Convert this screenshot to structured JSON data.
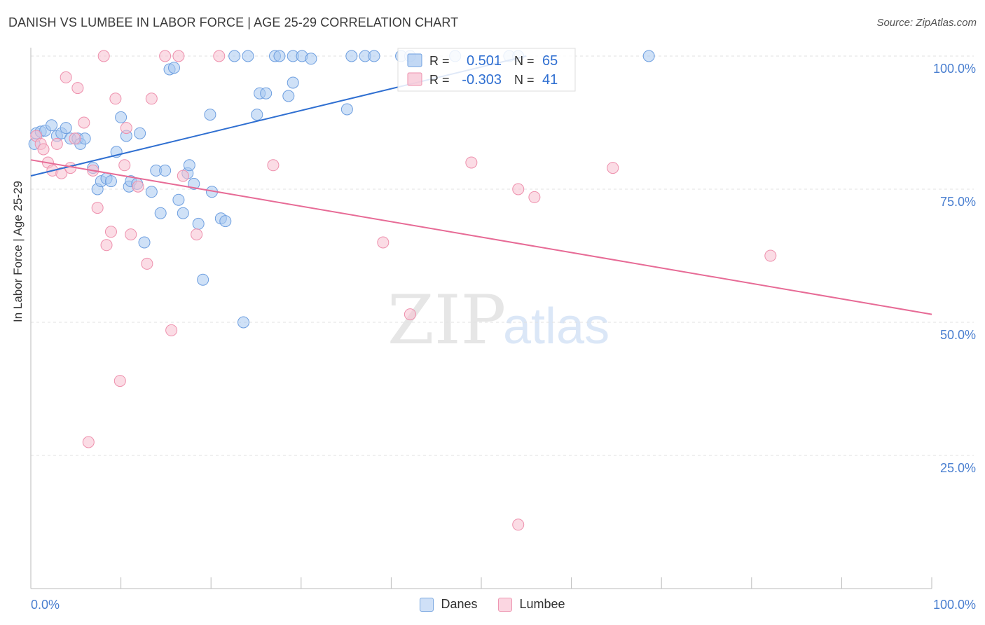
{
  "header": {
    "title": "DANISH VS LUMBEE IN LABOR FORCE | AGE 25-29 CORRELATION CHART",
    "source": "Source: ZipAtlas.com"
  },
  "watermark": {
    "zip": "ZIP",
    "atlas": "atlas"
  },
  "chart_data": {
    "type": "scatter",
    "ylabel": "In Labor Force | Age 25-29",
    "xlim": [
      0,
      100
    ],
    "ylim": [
      0,
      100
    ],
    "x_tick_labels": [
      "0.0%",
      "100.0%"
    ],
    "y_ticks": [
      25,
      50,
      75,
      100
    ],
    "y_tick_labels": [
      "25.0%",
      "50.0%",
      "75.0%",
      "100.0%"
    ],
    "grid": true,
    "legend_position": "top-center",
    "series": [
      {
        "name": "Danes",
        "color": "#a8c8f0",
        "edge": "#6e9fe0",
        "line_color": "#2f6fd1",
        "R": "0.501",
        "N": "65",
        "trend": [
          [
            0,
            77.5
          ],
          [
            55,
            100
          ]
        ],
        "points": [
          [
            0.4,
            83.5
          ],
          [
            0.6,
            85.5
          ],
          [
            1.1,
            85.8
          ],
          [
            1.6,
            86.0
          ],
          [
            2.3,
            87.0
          ],
          [
            2.9,
            85.0
          ],
          [
            3.4,
            85.5
          ],
          [
            3.9,
            86.5
          ],
          [
            4.4,
            84.5
          ],
          [
            5.2,
            84.5
          ],
          [
            5.5,
            83.5
          ],
          [
            6.0,
            84.5
          ],
          [
            6.9,
            79.0
          ],
          [
            7.4,
            75.0
          ],
          [
            7.8,
            76.5
          ],
          [
            8.4,
            77.0
          ],
          [
            8.9,
            76.5
          ],
          [
            9.5,
            82.0
          ],
          [
            10.0,
            88.5
          ],
          [
            10.6,
            85.0
          ],
          [
            10.9,
            75.5
          ],
          [
            11.1,
            76.5
          ],
          [
            11.8,
            76.0
          ],
          [
            12.1,
            85.5
          ],
          [
            12.6,
            65.0
          ],
          [
            13.4,
            74.5
          ],
          [
            13.9,
            78.5
          ],
          [
            14.4,
            70.5
          ],
          [
            14.9,
            78.5
          ],
          [
            15.4,
            97.5
          ],
          [
            15.9,
            97.8
          ],
          [
            16.4,
            73.0
          ],
          [
            16.9,
            70.5
          ],
          [
            17.4,
            78.0
          ],
          [
            17.6,
            79.5
          ],
          [
            18.1,
            76.0
          ],
          [
            18.6,
            68.5
          ],
          [
            19.1,
            58.0
          ],
          [
            19.9,
            89.0
          ],
          [
            20.1,
            74.5
          ],
          [
            21.1,
            69.5
          ],
          [
            21.6,
            69.0
          ],
          [
            22.6,
            100
          ],
          [
            23.6,
            50.0
          ],
          [
            24.1,
            100
          ],
          [
            25.1,
            89.0
          ],
          [
            25.4,
            93.0
          ],
          [
            26.1,
            93.0
          ],
          [
            27.1,
            100
          ],
          [
            27.6,
            100
          ],
          [
            28.6,
            92.5
          ],
          [
            29.1,
            95.0
          ],
          [
            29.1,
            100
          ],
          [
            30.1,
            100
          ],
          [
            31.1,
            99.5
          ],
          [
            35.1,
            90.0
          ],
          [
            35.6,
            100
          ],
          [
            37.1,
            100
          ],
          [
            38.1,
            100
          ],
          [
            41.1,
            100
          ],
          [
            42.1,
            100
          ],
          [
            47.1,
            100
          ],
          [
            53.1,
            100
          ],
          [
            54.1,
            100
          ],
          [
            68.6,
            100
          ]
        ]
      },
      {
        "name": "Lumbee",
        "color": "#f7bfd0",
        "edge": "#ee90ad",
        "line_color": "#e76b96",
        "R": "-0.303",
        "N": "41",
        "trend": [
          [
            0,
            80.5
          ],
          [
            100,
            51.5
          ]
        ],
        "points": [
          [
            0.6,
            85.0
          ],
          [
            1.1,
            83.5
          ],
          [
            1.4,
            82.5
          ],
          [
            1.9,
            80.0
          ],
          [
            2.4,
            78.5
          ],
          [
            2.9,
            83.5
          ],
          [
            3.4,
            78.0
          ],
          [
            3.9,
            96.0
          ],
          [
            4.4,
            79.0
          ],
          [
            4.9,
            84.5
          ],
          [
            5.2,
            94.0
          ],
          [
            5.9,
            87.5
          ],
          [
            6.4,
            27.5
          ],
          [
            6.9,
            78.5
          ],
          [
            7.4,
            71.5
          ],
          [
            8.1,
            100
          ],
          [
            8.4,
            64.5
          ],
          [
            8.9,
            67.0
          ],
          [
            9.4,
            92.0
          ],
          [
            9.9,
            39.0
          ],
          [
            10.4,
            79.5
          ],
          [
            10.6,
            86.5
          ],
          [
            11.1,
            66.5
          ],
          [
            11.9,
            75.5
          ],
          [
            12.9,
            61.0
          ],
          [
            13.4,
            92.0
          ],
          [
            14.9,
            100
          ],
          [
            15.6,
            48.5
          ],
          [
            16.4,
            100
          ],
          [
            16.9,
            77.5
          ],
          [
            18.4,
            66.5
          ],
          [
            20.9,
            100
          ],
          [
            26.9,
            79.5
          ],
          [
            39.1,
            65.0
          ],
          [
            42.1,
            51.5
          ],
          [
            48.9,
            80.0
          ],
          [
            54.1,
            75.0
          ],
          [
            54.1,
            12.0
          ],
          [
            55.9,
            73.5
          ],
          [
            64.6,
            79.0
          ],
          [
            82.1,
            62.5
          ]
        ]
      }
    ]
  }
}
